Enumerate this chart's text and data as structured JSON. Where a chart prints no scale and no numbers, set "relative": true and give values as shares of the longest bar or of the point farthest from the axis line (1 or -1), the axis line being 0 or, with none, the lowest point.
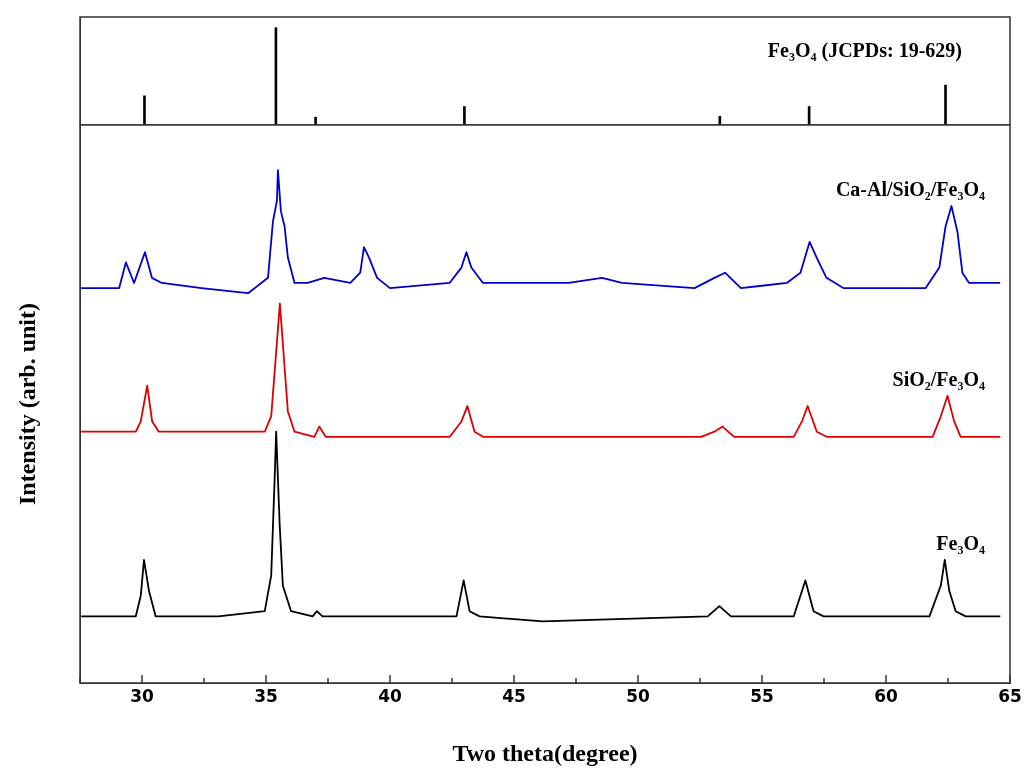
{
  "chart_data": [
    {
      "type": "bar",
      "relative": true,
      "xlim": [
        27.5,
        65
      ],
      "tick_labels": false,
      "series": [
        {
          "name": "Fe₃O₄ (JCPDs: 19-629)",
          "color": "#000000",
          "x": [
            30.1,
            35.4,
            37.0,
            43.0,
            53.3,
            56.9,
            62.4
          ],
          "values": [
            0.3,
            1,
            0.08,
            0.19,
            0.09,
            0.19,
            0.41
          ]
        }
      ]
    },
    {
      "type": "line",
      "relative": true,
      "xlabel": "Two theta(degree)",
      "ylabel": "Intensity (arb. unit)",
      "xlim": [
        27.5,
        65
      ],
      "tick_labels": "x",
      "xticks": [
        {
          "value": 27.5,
          "label": null
        },
        30,
        {
          "value": 32.5,
          "label": null
        },
        35,
        {
          "value": 37.5,
          "label": null
        },
        40,
        {
          "value": 42.5,
          "label": null
        },
        45,
        {
          "value": 47.5,
          "label": null
        },
        50,
        {
          "value": 52.5,
          "label": null
        },
        55,
        {
          "value": 57.5,
          "label": null
        },
        60,
        {
          "value": 62.5,
          "label": null
        },
        65
      ],
      "series": [
        {
          "name": "Ca-Al/SiO₂/Fe₃O₄",
          "color": "#0000cc",
          "x": [
            27.55,
            29.08,
            29.35,
            29.68,
            30.12,
            30.4,
            30.8,
            32.4,
            34.28,
            35.08,
            35.28,
            35.44,
            35.48,
            35.6,
            35.75,
            35.88,
            36.15,
            36.68,
            37.35,
            38.4,
            38.8,
            38.95,
            39.15,
            39.48,
            40.0,
            42.4,
            42.88,
            43.08,
            43.28,
            43.75,
            46.15,
            47.2,
            48.55,
            49.35,
            52.28,
            53.08,
            53.51,
            54.15,
            56.0,
            56.55,
            56.92,
            57.2,
            57.6,
            58.28,
            61.6,
            62.15,
            62.4,
            62.64,
            62.88,
            63.08,
            63.35,
            64.6
          ],
          "values": [
            0.77,
            0.77,
            0.82,
            0.78,
            0.84,
            0.79,
            0.78,
            0.77,
            0.76,
            0.79,
            0.9,
            0.94,
            1,
            0.92,
            0.89,
            0.83,
            0.78,
            0.78,
            0.79,
            0.78,
            0.8,
            0.85,
            0.83,
            0.79,
            0.77,
            0.78,
            0.81,
            0.84,
            0.81,
            0.78,
            0.78,
            0.78,
            0.79,
            0.78,
            0.77,
            0.79,
            0.8,
            0.77,
            0.78,
            0.8,
            0.86,
            0.83,
            0.79,
            0.77,
            0.77,
            0.81,
            0.89,
            0.93,
            0.88,
            0.8,
            0.78,
            0.78
          ]
        },
        {
          "name": "SiO₂/Fe₃O₄",
          "color": "#dd0000",
          "x": [
            27.55,
            29.75,
            29.95,
            30.21,
            30.41,
            30.68,
            33.2,
            34.95,
            35.21,
            35.56,
            35.88,
            36.15,
            36.95,
            37.15,
            37.41,
            42.41,
            42.88,
            43.12,
            43.41,
            43.75,
            46.15,
            52.55,
            53.08,
            53.41,
            53.88,
            56.28,
            56.61,
            56.84,
            57.21,
            57.61,
            61.88,
            62.21,
            62.48,
            62.75,
            63.01,
            64.61
          ],
          "values": [
            0.49,
            0.49,
            0.51,
            0.58,
            0.51,
            0.49,
            0.49,
            0.49,
            0.52,
            0.74,
            0.53,
            0.49,
            0.48,
            0.5,
            0.48,
            0.48,
            0.51,
            0.54,
            0.49,
            0.48,
            0.48,
            0.48,
            0.49,
            0.5,
            0.48,
            0.48,
            0.51,
            0.54,
            0.49,
            0.48,
            0.48,
            0.52,
            0.56,
            0.51,
            0.48,
            0.48
          ]
        },
        {
          "name": "Fe₃O₄",
          "color": "#000000",
          "x": [
            27.55,
            29.75,
            29.95,
            30.08,
            30.28,
            30.55,
            33.08,
            34.95,
            35.21,
            35.35,
            35.41,
            35.55,
            35.68,
            36.01,
            36.88,
            37.05,
            37.28,
            42.68,
            42.97,
            43.21,
            43.61,
            46.15,
            52.81,
            53.28,
            53.75,
            56.28,
            56.75,
            57.08,
            57.48,
            61.75,
            62.21,
            62.37,
            62.55,
            62.81,
            63.21,
            64.61
          ],
          "values": [
            0.13,
            0.13,
            0.17,
            0.24,
            0.18,
            0.13,
            0.13,
            0.14,
            0.21,
            0.4,
            0.49,
            0.31,
            0.19,
            0.14,
            0.13,
            0.14,
            0.13,
            0.13,
            0.2,
            0.14,
            0.13,
            0.12,
            0.13,
            0.15,
            0.13,
            0.13,
            0.2,
            0.14,
            0.13,
            0.13,
            0.19,
            0.24,
            0.18,
            0.14,
            0.13,
            0.13
          ]
        }
      ]
    }
  ]
}
